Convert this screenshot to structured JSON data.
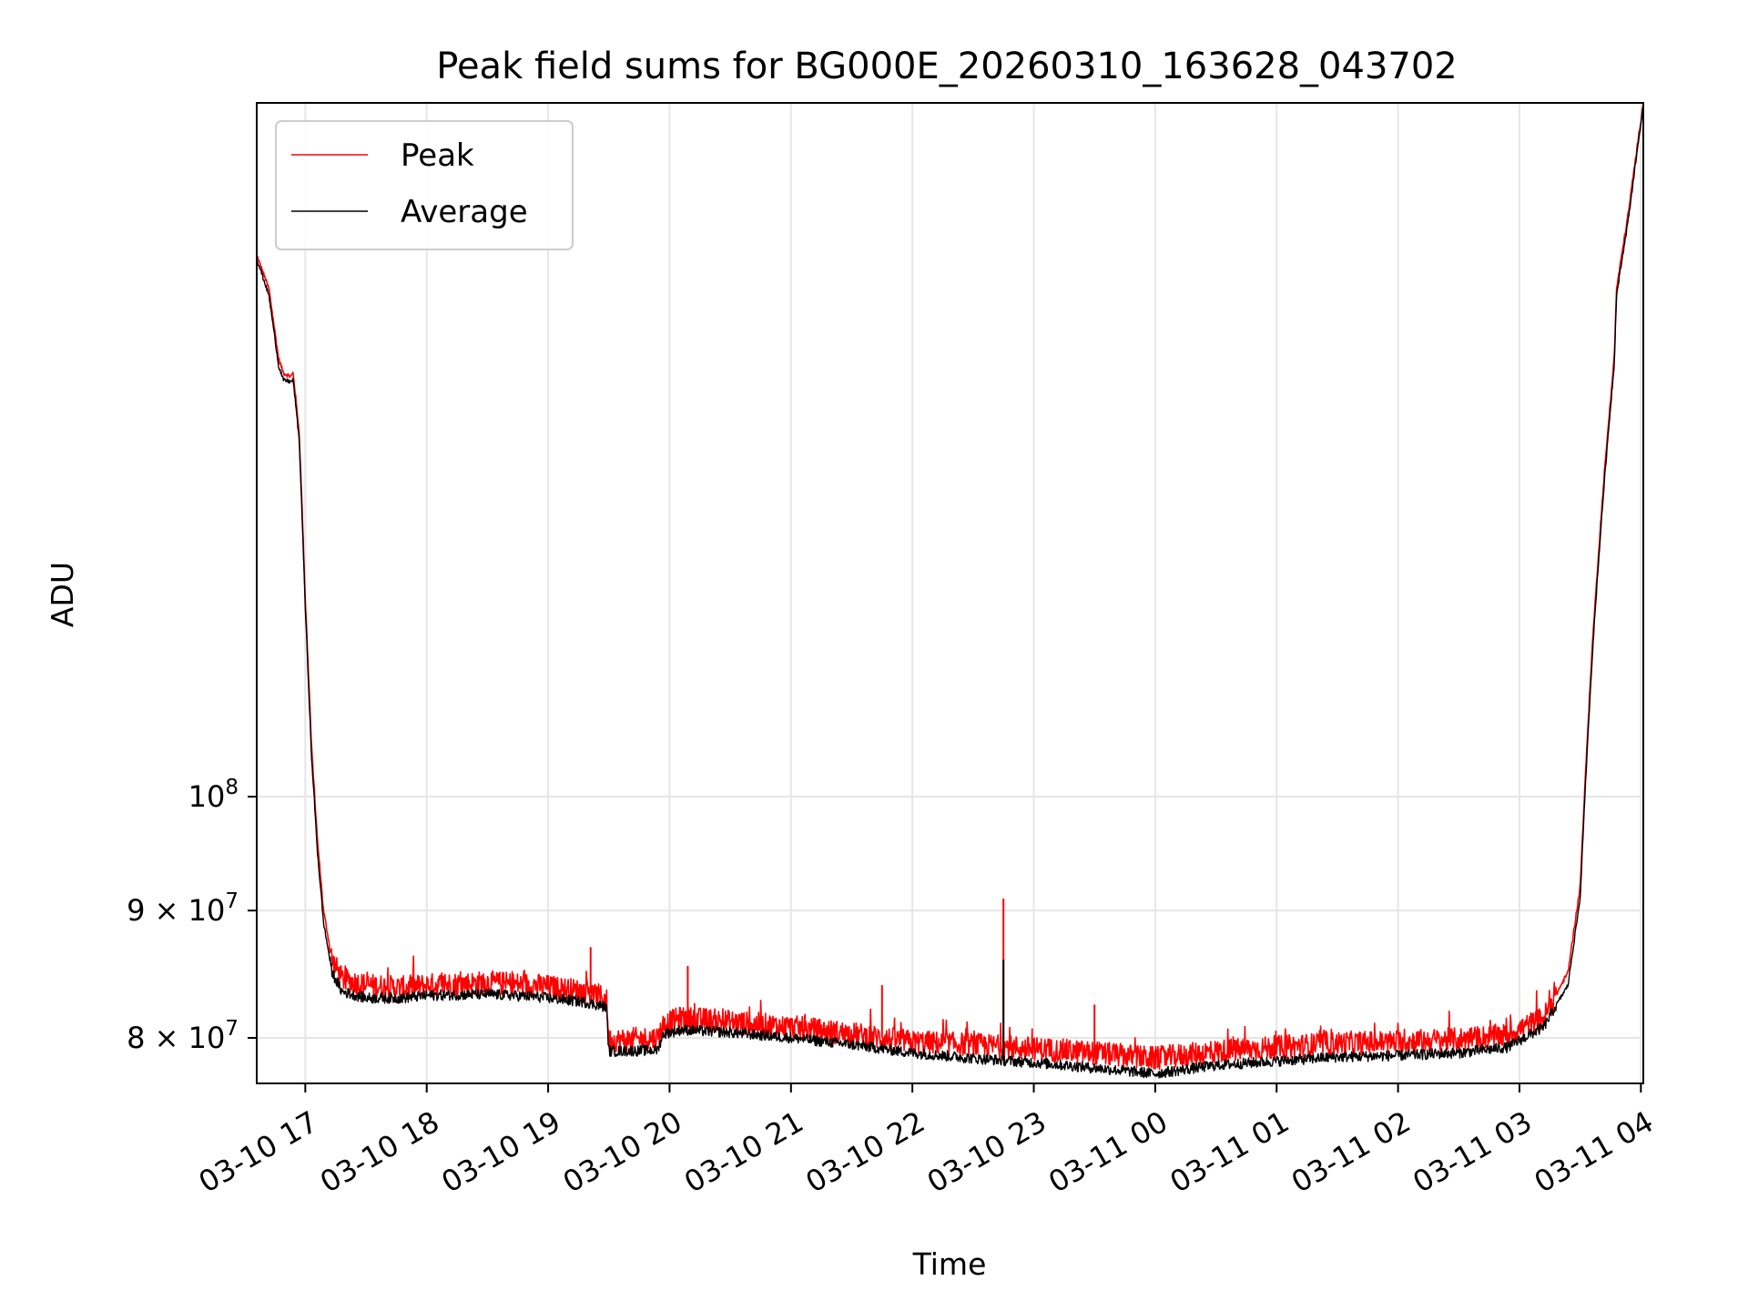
{
  "chart_data": {
    "type": "line",
    "title": "Peak field sums for BG000E_20260310_163628_043702",
    "xlabel": "Time",
    "ylabel": "ADU",
    "yscale": "log",
    "ylim": [
      76700000,
      190000000
    ],
    "xlim_hours": [
      -0.4,
      11.02
    ],
    "x_ticks": [
      {
        "h": 0,
        "label": "03-10 17"
      },
      {
        "h": 1,
        "label": "03-10 18"
      },
      {
        "h": 2,
        "label": "03-10 19"
      },
      {
        "h": 3,
        "label": "03-10 20"
      },
      {
        "h": 4,
        "label": "03-10 21"
      },
      {
        "h": 5,
        "label": "03-10 22"
      },
      {
        "h": 6,
        "label": "03-10 23"
      },
      {
        "h": 7,
        "label": "03-11 00"
      },
      {
        "h": 8,
        "label": "03-11 01"
      },
      {
        "h": 9,
        "label": "03-11 02"
      },
      {
        "h": 10,
        "label": "03-11 03"
      },
      {
        "h": 11,
        "label": "03-11 04"
      }
    ],
    "y_ticks": [
      {
        "value": 100000000,
        "base": "10",
        "exp": "8"
      },
      {
        "value": 90000000,
        "base": "9 × 10",
        "exp": "7"
      },
      {
        "value": 80000000,
        "base": "8 × 10",
        "exp": "7"
      }
    ],
    "grid": true,
    "legend": {
      "position": "top-left",
      "entries": [
        "Peak",
        "Average"
      ]
    },
    "series": [
      {
        "name": "Peak",
        "color": "#ff0000",
        "points": [
          [
            -0.4,
            165000000
          ],
          [
            -0.3,
            160000000
          ],
          [
            -0.22,
            150000000
          ],
          [
            -0.18,
            148000000
          ],
          [
            -0.12,
            147500000
          ],
          [
            -0.1,
            148000000
          ],
          [
            -0.05,
            140000000
          ],
          [
            0.0,
            120000000
          ],
          [
            0.05,
            105000000
          ],
          [
            0.1,
            96000000
          ],
          [
            0.15,
            90000000
          ],
          [
            0.22,
            86000000
          ],
          [
            0.3,
            84500000
          ],
          [
            0.5,
            84000000
          ],
          [
            0.8,
            83800000
          ],
          [
            1.0,
            84000000
          ],
          [
            1.5,
            84200000
          ],
          [
            1.9,
            84000000
          ],
          [
            2.3,
            83500000
          ],
          [
            2.48,
            83000000
          ],
          [
            2.5,
            79800000
          ],
          [
            2.9,
            80000000
          ],
          [
            2.95,
            81000000
          ],
          [
            3.1,
            81500000
          ],
          [
            3.5,
            81200000
          ],
          [
            4.0,
            80800000
          ],
          [
            4.5,
            80300000
          ],
          [
            5.0,
            79700000
          ],
          [
            5.5,
            79500000
          ],
          [
            6.0,
            79200000
          ],
          [
            6.5,
            78900000
          ],
          [
            7.0,
            78500000
          ],
          [
            7.5,
            79000000
          ],
          [
            8.0,
            79300000
          ],
          [
            8.5,
            79600000
          ],
          [
            9.0,
            79700000
          ],
          [
            9.5,
            79900000
          ],
          [
            9.9,
            80200000
          ],
          [
            10.2,
            81500000
          ],
          [
            10.4,
            85000000
          ],
          [
            10.5,
            92000000
          ],
          [
            10.6,
            115000000
          ],
          [
            10.7,
            135000000
          ],
          [
            10.78,
            150000000
          ],
          [
            10.8,
            160000000
          ],
          [
            10.9,
            172000000
          ],
          [
            11.02,
            190000000
          ]
        ]
      },
      {
        "name": "Average",
        "color": "#000000",
        "points": [
          [
            -0.4,
            164500000
          ],
          [
            -0.3,
            159000000
          ],
          [
            -0.22,
            149000000
          ],
          [
            -0.18,
            147000000
          ],
          [
            -0.12,
            146800000
          ],
          [
            -0.1,
            147000000
          ],
          [
            -0.05,
            139000000
          ],
          [
            0.0,
            119000000
          ],
          [
            0.05,
            104000000
          ],
          [
            0.1,
            95000000
          ],
          [
            0.15,
            89000000
          ],
          [
            0.22,
            85000000
          ],
          [
            0.3,
            83500000
          ],
          [
            0.5,
            83000000
          ],
          [
            0.8,
            83000000
          ],
          [
            1.0,
            83200000
          ],
          [
            1.5,
            83300000
          ],
          [
            1.9,
            83100000
          ],
          [
            2.3,
            82700000
          ],
          [
            2.48,
            82300000
          ],
          [
            2.5,
            79000000
          ],
          [
            2.9,
            79100000
          ],
          [
            2.95,
            80300000
          ],
          [
            3.1,
            80600000
          ],
          [
            3.5,
            80400000
          ],
          [
            4.0,
            80000000
          ],
          [
            4.5,
            79500000
          ],
          [
            5.0,
            78900000
          ],
          [
            5.5,
            78500000
          ],
          [
            6.0,
            78200000
          ],
          [
            6.5,
            77800000
          ],
          [
            7.0,
            77400000
          ],
          [
            7.5,
            78000000
          ],
          [
            8.0,
            78300000
          ],
          [
            8.5,
            78600000
          ],
          [
            9.0,
            78700000
          ],
          [
            9.5,
            78900000
          ],
          [
            9.9,
            79300000
          ],
          [
            10.2,
            80800000
          ],
          [
            10.4,
            84000000
          ],
          [
            10.5,
            91000000
          ],
          [
            10.6,
            114000000
          ],
          [
            10.7,
            134000000
          ],
          [
            10.78,
            149000000
          ],
          [
            10.8,
            159000000
          ],
          [
            10.9,
            171000000
          ],
          [
            11.02,
            189500000
          ]
        ]
      }
    ],
    "annotations": [
      {
        "series": "Peak",
        "h": 4.75,
        "value": 84000000
      },
      {
        "series": "Peak",
        "h": 5.75,
        "value": 91000000
      },
      {
        "series": "Average",
        "h": 5.75,
        "value": 86000000
      },
      {
        "series": "Peak",
        "h": 3.15,
        "value": 85500000
      },
      {
        "series": "Peak",
        "h": 2.35,
        "value": 87000000
      },
      {
        "series": "Peak",
        "h": 6.5,
        "value": 82500000
      }
    ]
  }
}
